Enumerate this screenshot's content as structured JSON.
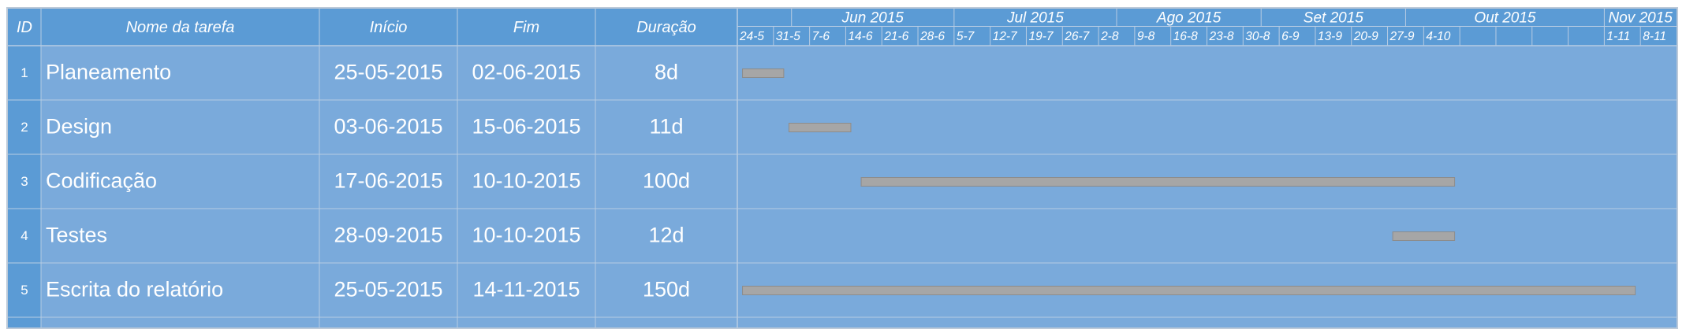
{
  "chart_data": {
    "type": "gantt",
    "columns": {
      "id": "ID",
      "name": "Nome da tarefa",
      "start": "Início",
      "end": "Fim",
      "duration": "Duração"
    },
    "timeline_start": "2015-05-24",
    "timeline_end": "2015-11-15",
    "months": [
      "Jun 2015",
      "Jul 2015",
      "Ago 2015",
      "Set 2015",
      "Out 2015",
      "Nov 2015"
    ],
    "week_ticks": [
      "24-5",
      "31-5",
      "7-6",
      "14-6",
      "21-6",
      "28-6",
      "5-7",
      "12-7",
      "19-7",
      "26-7",
      "2-8",
      "9-8",
      "16-8",
      "23-8",
      "30-8",
      "6-9",
      "13-9",
      "20-9",
      "27-9",
      "4-10",
      "",
      "",
      "",
      "",
      "1-11",
      "8-11"
    ],
    "tasks": [
      {
        "id": "1",
        "name": "Planeamento",
        "start": "25-05-2015",
        "end": "02-06-2015",
        "duration": "8d"
      },
      {
        "id": "2",
        "name": "Design",
        "start": "03-06-2015",
        "end": "15-06-2015",
        "duration": "11d"
      },
      {
        "id": "3",
        "name": "Codificação",
        "start": "17-06-2015",
        "end": "10-10-2015",
        "duration": "100d"
      },
      {
        "id": "4",
        "name": "Testes",
        "start": "28-09-2015",
        "end": "10-10-2015",
        "duration": "12d"
      },
      {
        "id": "5",
        "name": "Escrita do relatório",
        "start": "25-05-2015",
        "end": "14-11-2015",
        "duration": "150d"
      }
    ],
    "colors": {
      "header": "#5b9bd5",
      "row": "#7aaadb",
      "id_cell": "#5b9bd5",
      "bar": "#a6a6a6",
      "grid": "#b7cce3",
      "text": "#ffffff"
    }
  }
}
